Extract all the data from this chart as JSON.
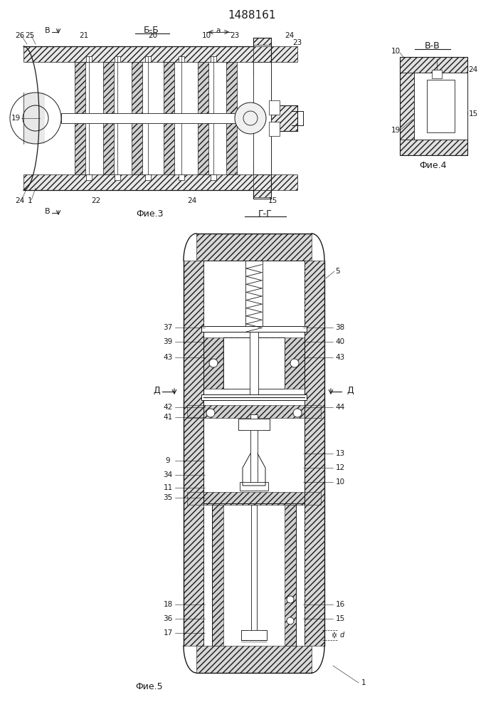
{
  "title": "1488161",
  "bg_color": "#ffffff",
  "line_color": "#1a1a1a",
  "fig3_label": "Фие.3",
  "fig4_label": "Фие.4",
  "fig5_label": "Фие.5",
  "section_bb": "Б-Б",
  "section_vv": "В-В",
  "section_gg": "Г-Г",
  "dd_label": "Д"
}
